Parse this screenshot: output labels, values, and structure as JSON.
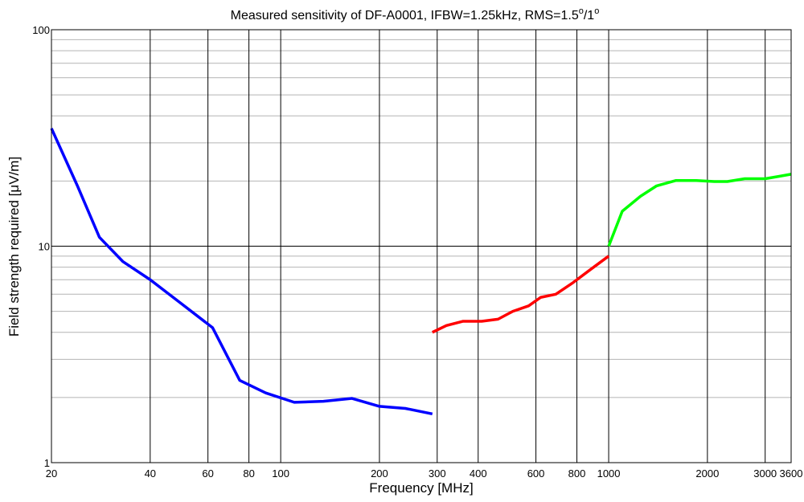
{
  "chart_data": {
    "type": "line",
    "title": {
      "main": "Measured sensitivity of DF-A0001, IFBW=1.25kHz, RMS=1.5",
      "sup1": "o",
      "mid": "/1",
      "sup2": "o"
    },
    "xlabel": "Frequency [MHz]",
    "ylabel": "Field strength required [μV/m]",
    "x_scale": "log",
    "y_scale": "log",
    "xlim": [
      20,
      3600
    ],
    "ylim": [
      1,
      100
    ],
    "x_ticks": [
      {
        "value": 20,
        "label": "20"
      },
      {
        "value": 40,
        "label": "40"
      },
      {
        "value": 60,
        "label": "60"
      },
      {
        "value": 80,
        "label": "80"
      },
      {
        "value": 100,
        "label": "100"
      },
      {
        "value": 200,
        "label": "200"
      },
      {
        "value": 300,
        "label": "300"
      },
      {
        "value": 400,
        "label": "400"
      },
      {
        "value": 600,
        "label": "600"
      },
      {
        "value": 800,
        "label": "800"
      },
      {
        "value": 1000,
        "label": "1000"
      },
      {
        "value": 2000,
        "label": "2000"
      },
      {
        "value": 3000,
        "label": "3000"
      },
      {
        "value": 3600,
        "label": "3600"
      }
    ],
    "y_ticks": [
      {
        "value": 1,
        "label": "1"
      },
      {
        "value": 10,
        "label": "10"
      },
      {
        "value": 100,
        "label": "100"
      }
    ],
    "grid": "x major lines; y minor log grid",
    "series": [
      {
        "color": "#0000ff",
        "x": [
          20,
          24,
          28,
          33,
          40,
          50,
          62,
          75,
          90,
          110,
          135,
          165,
          200,
          240,
          290
        ],
        "y": [
          35,
          19,
          11,
          8.5,
          7,
          5.4,
          4.2,
          2.4,
          2.1,
          1.9,
          1.92,
          1.98,
          1.82,
          1.78,
          1.68
        ]
      },
      {
        "color": "#ff0000",
        "x": [
          290,
          320,
          360,
          410,
          460,
          510,
          570,
          620,
          690,
          780,
          880,
          1000
        ],
        "y": [
          4.0,
          4.3,
          4.5,
          4.5,
          4.6,
          5.0,
          5.3,
          5.8,
          6.0,
          6.8,
          7.8,
          9.0
        ]
      },
      {
        "color": "#00ff00",
        "x": [
          1000,
          1100,
          1250,
          1400,
          1600,
          1850,
          2100,
          2300,
          2600,
          3000,
          3300,
          3600
        ],
        "y": [
          10,
          14.5,
          17,
          19,
          20.1,
          20.1,
          19.9,
          19.9,
          20.5,
          20.5,
          21,
          21.5
        ]
      }
    ]
  }
}
